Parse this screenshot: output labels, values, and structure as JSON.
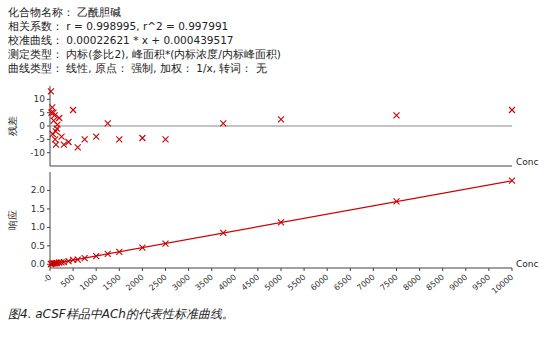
{
  "chart_data": [
    {
      "type": "scatter",
      "annotations": [
        "化合物名称： 乙酰胆碱",
        "相关系数： r = 0.998995, r^2 = 0.997991",
        "校准曲线： 0.00022621 * x + 0.000439517",
        "测定类型： 内标(参比2), 峰面积*(内标浓度/内标峰面积)",
        "曲线类型： 线性, 原点： 强制, 加权： 1/x, 转词： 无"
      ],
      "ylabel": "残差",
      "xlabel": "Conc",
      "xlim": [
        0,
        10000
      ],
      "ylim": [
        -15,
        15
      ],
      "yticks": [
        -10,
        -5,
        0,
        5,
        10
      ],
      "tick_labels": "y",
      "hline": 0,
      "series": [
        {
          "type": "scatter",
          "marker": "x",
          "color": "#cc0000",
          "x": [
            20,
            30,
            50,
            60,
            75,
            80,
            100,
            110,
            125,
            130,
            150,
            160,
            200,
            250,
            300,
            400,
            500,
            600,
            750,
            1000,
            1250,
            1500,
            2000,
            2500,
            3750,
            5000,
            7500,
            10000
          ],
          "values": [
            13,
            5,
            7,
            -3,
            5,
            2,
            4,
            -5,
            -2,
            -7,
            -1,
            0.5,
            3,
            -4,
            -7,
            -6,
            6,
            -8,
            -5,
            -4,
            1,
            -5,
            -4.5,
            -5,
            1,
            2.5,
            4,
            6
          ]
        }
      ]
    },
    {
      "type": "scatter",
      "ylabel": "响应",
      "xlabel": "Conc",
      "caption": "图4. aCSF样品中ACh的代表性标准曲线。",
      "xlim": [
        0,
        10000
      ],
      "ylim": [
        -0.1,
        2.5
      ],
      "xticks": [
        {
          "value": 0,
          "label": "-0"
        },
        500,
        1000,
        1500,
        2000,
        2500,
        3000,
        3500,
        4000,
        4500,
        5000,
        5500,
        6000,
        6500,
        7000,
        7500,
        8000,
        8500,
        9000,
        9500,
        10000
      ],
      "yticks": [
        {
          "value": 0,
          "label": "0.0"
        },
        {
          "value": 0.5,
          "label": "0.5"
        },
        {
          "value": 1,
          "label": "1.0"
        },
        {
          "value": 1.5,
          "label": "1.5"
        },
        {
          "value": 2,
          "label": "2.0"
        }
      ],
      "series": [
        {
          "type": "scatter",
          "marker": "x",
          "color": "#cc0000",
          "x": [
            20,
            50,
            75,
            100,
            125,
            150,
            200,
            250,
            300,
            400,
            500,
            600,
            750,
            1000,
            1250,
            1500,
            2000,
            2500,
            3750,
            5000,
            7500,
            10000
          ],
          "values": [
            0.007963717,
            0.015750017,
            0.022405267,
            0.028060517,
            0.032715767,
            0.031371017,
            0.048681517,
            0.051992017,
            0.060302517,
            0.085923517,
            0.118544517,
            0.128165517,
            0.165097017,
            0.221649517,
            0.284202017,
            0.334754517,
            0.448859517,
            0.560964517,
            0.849727017,
            1.134489517,
            1.702014517,
            2.267539517
          ]
        },
        {
          "type": "line",
          "line_style": "solid",
          "color": "#cc0000",
          "x": [
            0,
            10000
          ],
          "values": [
            0.000439517,
            2.262539517
          ]
        }
      ]
    }
  ]
}
